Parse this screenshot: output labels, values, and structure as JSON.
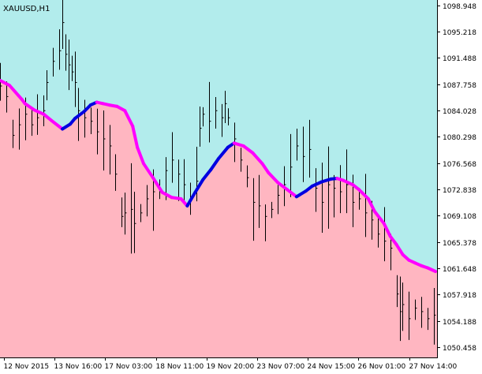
{
  "window": {
    "symbol_label": "XAUUSD,H1"
  },
  "colors": {
    "upper_fill": "#b2ecec",
    "lower_fill": "#ffb6c1",
    "price_bars": "#000000",
    "trend_down": "#ff00ff",
    "trend_up": "#0000e0",
    "axis": "#000000"
  },
  "chart_data": {
    "type": "line",
    "title": "XAUUSD,H1",
    "ylim": [
      1049.0,
      1099.7
    ],
    "y_ticks": [
      "1098.948",
      "1095.218",
      "1091.488",
      "1087.758",
      "1084.028",
      "1080.298",
      "1076.568",
      "1072.838",
      "1069.108",
      "1065.378",
      "1061.648",
      "1057.918",
      "1054.188",
      "1050.458"
    ],
    "x_ticks": [
      "12 Nov 2015",
      "13 Nov 16:00",
      "17 Nov 03:00",
      "18 Nov 11:00",
      "19 Nov 20:00",
      "23 Nov 07:00",
      "24 Nov 15:00",
      "26 Nov 01:00",
      "27 Nov 14:00"
    ],
    "grid": false,
    "series": [
      {
        "role": "trend_line",
        "x_index": [
          0,
          6,
          14,
          16,
          22,
          28,
          33,
          40,
          45,
          48,
          54,
          58,
          62,
          66,
          70,
          75,
          80,
          85,
          88,
          92,
          98,
          104,
          110,
          116,
          120,
          125,
          130,
          135,
          140,
          146,
          150,
          156,
          162,
          168,
          172,
          178,
          184,
          190,
          196,
          200,
          206,
          212,
          216,
          220,
          226,
          230,
          236,
          240,
          246,
          250,
          254,
          258,
          262,
          266,
          270,
          274,
          279
        ],
        "values": [
          1088.3,
          1087.6,
          1085.6,
          1085.0,
          1084.1,
          1083.5,
          1082.6,
          1081.4,
          1082.1,
          1082.9,
          1083.9,
          1084.8,
          1085.2,
          1085.0,
          1084.8,
          1084.6,
          1084.0,
          1081.8,
          1078.8,
          1076.5,
          1074.5,
          1072.4,
          1071.7,
          1071.5,
          1070.5,
          1072.4,
          1074.2,
          1075.6,
          1077.2,
          1078.8,
          1079.4,
          1079.0,
          1078.0,
          1076.5,
          1075.2,
          1073.8,
          1072.8,
          1071.8,
          1072.6,
          1073.3,
          1073.9,
          1074.3,
          1074.4,
          1074.1,
          1073.5,
          1072.8,
          1071.5,
          1069.7,
          1068.0,
          1066.2,
          1065.0,
          1063.6,
          1062.8,
          1062.4,
          1062.0,
          1061.7,
          1061.2
        ]
      },
      {
        "role": "price_bars_hourly",
        "x_index": [
          0,
          4,
          8,
          12,
          16,
          20,
          24,
          28,
          30,
          34,
          38,
          40,
          42,
          44,
          46,
          48,
          50,
          54,
          58,
          62,
          66,
          70,
          74,
          78,
          80,
          84,
          86,
          90,
          94,
          98,
          102,
          106,
          110,
          114,
          118,
          122,
          126,
          128,
          130,
          134,
          138,
          142,
          144,
          146,
          150,
          154,
          158,
          162,
          166,
          170,
          174,
          178,
          182,
          186,
          190,
          194,
          198,
          202,
          206,
          210,
          214,
          218,
          222,
          226,
          230,
          234,
          238,
          242,
          246,
          250,
          254,
          256,
          258,
          262,
          266,
          270,
          274,
          278
        ],
        "values": [
          1087.5,
          1086.0,
          1080.5,
          1082.0,
          1083.5,
          1082.0,
          1083.0,
          1084.0,
          1088.0,
          1091.0,
          1092.5,
          1096.5,
          1092.0,
          1090.5,
          1089.5,
          1088.0,
          1084.0,
          1083.0,
          1082.5,
          1081.0,
          1080.0,
          1079.0,
          1075.0,
          1069.0,
          1069.5,
          1070.0,
          1068.0,
          1069.5,
          1071.5,
          1072.5,
          1073.0,
          1075.5,
          1077.0,
          1075.0,
          1073.5,
          1071.5,
          1074.0,
          1081.5,
          1083.5,
          1082.5,
          1084.0,
          1083.0,
          1085.0,
          1083.0,
          1080.0,
          1077.0,
          1074.5,
          1071.0,
          1070.5,
          1069.0,
          1070.0,
          1072.0,
          1073.5,
          1076.0,
          1079.0,
          1077.5,
          1078.5,
          1073.0,
          1071.0,
          1073.5,
          1073.0,
          1072.5,
          1073.5,
          1071.0,
          1071.5,
          1069.5,
          1068.5,
          1066.5,
          1065.5,
          1064.5,
          1058.0,
          1055.5,
          1056.5,
          1054.5,
          1056.0,
          1055.5,
          1054.5,
          1055.0
        ]
      }
    ]
  }
}
